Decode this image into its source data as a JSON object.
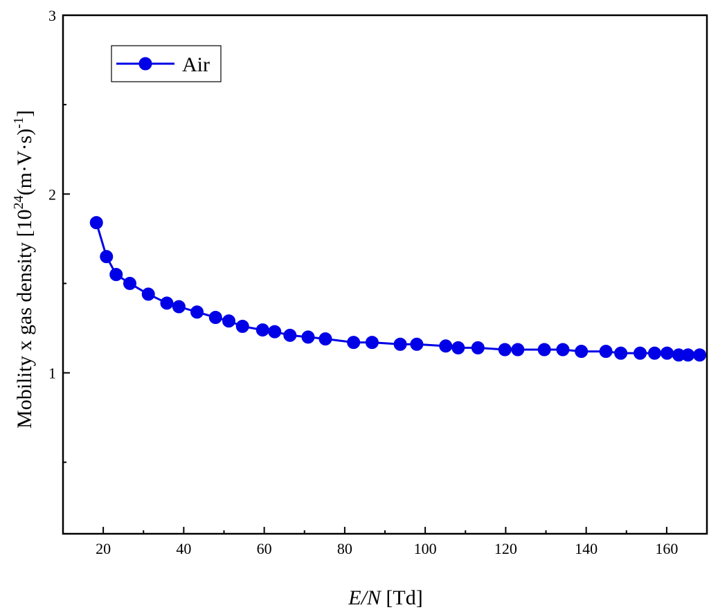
{
  "chart_data": {
    "type": "line",
    "xlabel": "E/N [Td]",
    "ylabel": "Mobility x gas density [10^24(m·V·s)^-1]",
    "xlim": [
      10,
      170
    ],
    "ylim": [
      0.1,
      3
    ],
    "x_ticks": [
      20,
      40,
      60,
      80,
      100,
      120,
      140,
      160
    ],
    "y_ticks": [
      1,
      2,
      3
    ],
    "legend_position": "top-left",
    "grid": false,
    "series": [
      {
        "name": "Air",
        "color": "#0000e6",
        "marker": "circle",
        "x": [
          18.3,
          20.8,
          23.2,
          26.6,
          31.2,
          35.8,
          38.8,
          43.3,
          47.9,
          51.2,
          54.6,
          59.6,
          62.6,
          66.4,
          70.9,
          75.2,
          82.2,
          86.8,
          93.8,
          97.9,
          105.1,
          108.2,
          113.1,
          119.8,
          123.0,
          129.6,
          134.2,
          138.8,
          144.9,
          148.6,
          153.4,
          157.0,
          160.1,
          163.0,
          165.3,
          168.2
        ],
        "values": [
          1.84,
          1.65,
          1.55,
          1.5,
          1.44,
          1.39,
          1.37,
          1.34,
          1.31,
          1.29,
          1.26,
          1.24,
          1.23,
          1.21,
          1.2,
          1.19,
          1.17,
          1.17,
          1.16,
          1.16,
          1.15,
          1.14,
          1.14,
          1.13,
          1.13,
          1.13,
          1.13,
          1.12,
          1.12,
          1.11,
          1.11,
          1.11,
          1.11,
          1.1,
          1.1,
          1.1
        ]
      }
    ]
  },
  "labels": {
    "xlabel_italic": "E/N",
    "xlabel_unit": " [Td]",
    "ylabel_main": "Mobility x gas density [10",
    "ylabel_sup1": "24",
    "ylabel_mid": "(m·V·s)",
    "ylabel_sup2": "-1",
    "ylabel_end": "]",
    "legend_entry": "Air"
  }
}
